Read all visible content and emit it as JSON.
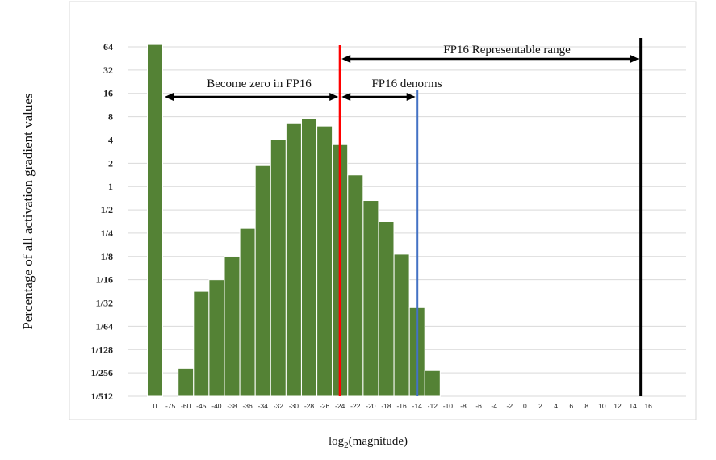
{
  "chart_data": {
    "type": "bar",
    "ylabel": "Percentage of all activation gradient values",
    "xlabel_base": "log",
    "xlabel_sub": "2",
    "xlabel_rest": "(magnitude)",
    "y_scale": "log2",
    "ylim_log2": [
      -9,
      6
    ],
    "y_tick_labels": [
      "1/512",
      "1/256",
      "1/128",
      "1/64",
      "1/32",
      "1/16",
      "1/8",
      "1/4",
      "1/2",
      "1",
      "2",
      "4",
      "8",
      "16",
      "32",
      "64"
    ],
    "categories": [
      "0",
      "-75",
      "-60",
      "-45",
      "-40",
      "-38",
      "-36",
      "-34",
      "-32",
      "-30",
      "-28",
      "-26",
      "-24",
      "-22",
      "-20",
      "-18",
      "-16",
      "-14",
      "-12",
      "-10",
      "-8",
      "-6",
      "-4",
      "-2",
      "0",
      "2",
      "4",
      "6",
      "8",
      "10",
      "12",
      "14",
      "16"
    ],
    "values_log2": [
      6.1,
      null,
      -7.8,
      -4.5,
      -4.0,
      -3.0,
      -1.8,
      0.9,
      2.0,
      2.7,
      2.9,
      2.6,
      1.8,
      0.5,
      -0.6,
      -1.5,
      -2.9,
      -5.2,
      -7.9,
      null,
      null,
      null,
      null,
      null,
      null,
      null,
      null,
      null,
      null,
      null,
      null,
      null,
      null
    ],
    "bar_color": "#548235",
    "grid": true,
    "vertical_lines": [
      {
        "at": "-24",
        "color": "#ff0000"
      },
      {
        "at": "-14",
        "color": "#4472c4"
      },
      {
        "at": "15",
        "color": "#000000"
      }
    ],
    "annotations": {
      "zero": "Become zero in FP16",
      "denorms": "FP16 denorms",
      "range": "FP16 Representable range"
    }
  }
}
